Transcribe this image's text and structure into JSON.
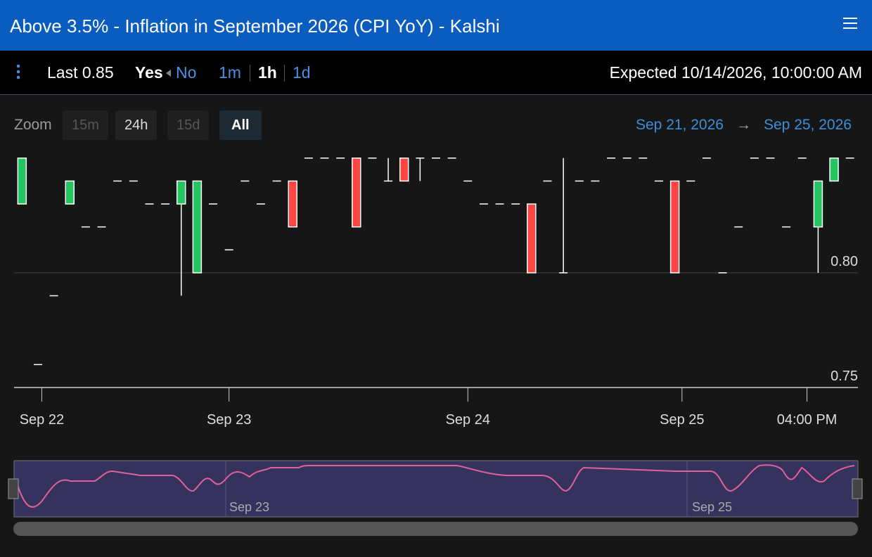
{
  "header": {
    "title": "Above 3.5% - Inflation in September 2026 (CPI YoY) - Kalshi"
  },
  "toolbar": {
    "last": "Last 0.85",
    "yes": "Yes",
    "no": "No",
    "intervals": [
      "1m",
      "1h",
      "1d"
    ],
    "expected": "Expected 10/14/2026, 10:00:00 AM"
  },
  "zoom": {
    "label": "Zoom",
    "buttons": [
      "15m",
      "24h",
      "15d",
      "All"
    ],
    "range_from": "Sep 21, 2026",
    "range_arrow": "→",
    "range_to": "Sep 25, 2026"
  },
  "chart_data": {
    "type": "candlestick",
    "x": [
      0,
      1,
      2,
      3,
      4,
      5,
      6,
      7,
      8,
      9,
      10,
      11,
      12,
      13,
      14,
      15,
      16,
      17,
      18,
      19,
      20,
      21,
      22,
      23,
      24,
      25,
      26,
      27,
      28,
      29,
      30,
      31,
      32,
      33,
      34,
      35,
      36,
      37,
      38,
      39,
      40,
      41,
      42,
      43,
      44,
      45,
      46,
      47,
      48,
      49,
      50,
      51,
      52
    ],
    "open": [
      0.83,
      0.76,
      0.79,
      0.83,
      0.82,
      0.82,
      0.84,
      0.84,
      0.83,
      0.83,
      0.83,
      0.8,
      0.83,
      0.81,
      0.84,
      0.83,
      0.84,
      0.84,
      0.85,
      0.85,
      0.85,
      0.85,
      0.85,
      0.84,
      0.85,
      0.85,
      0.85,
      0.85,
      0.84,
      0.83,
      0.83,
      0.83,
      0.83,
      0.84,
      0.8,
      0.84,
      0.84,
      0.85,
      0.85,
      0.85,
      0.84,
      0.84,
      0.84,
      0.85,
      0.8,
      0.82,
      0.85,
      0.85,
      0.82,
      0.85,
      0.82,
      0.84,
      0.85
    ],
    "high": [
      0.85,
      0.76,
      0.79,
      0.84,
      0.82,
      0.82,
      0.84,
      0.84,
      0.83,
      0.83,
      0.84,
      0.84,
      0.83,
      0.81,
      0.84,
      0.83,
      0.84,
      0.84,
      0.85,
      0.85,
      0.85,
      0.85,
      0.85,
      0.85,
      0.85,
      0.85,
      0.85,
      0.85,
      0.84,
      0.83,
      0.83,
      0.83,
      0.83,
      0.84,
      0.85,
      0.84,
      0.84,
      0.85,
      0.85,
      0.85,
      0.84,
      0.84,
      0.84,
      0.85,
      0.8,
      0.82,
      0.85,
      0.85,
      0.82,
      0.85,
      0.84,
      0.85,
      0.85
    ],
    "low": [
      0.83,
      0.76,
      0.79,
      0.83,
      0.82,
      0.82,
      0.84,
      0.84,
      0.83,
      0.83,
      0.79,
      0.8,
      0.83,
      0.81,
      0.84,
      0.83,
      0.84,
      0.82,
      0.85,
      0.85,
      0.85,
      0.82,
      0.85,
      0.84,
      0.84,
      0.84,
      0.85,
      0.85,
      0.84,
      0.83,
      0.83,
      0.83,
      0.8,
      0.84,
      0.8,
      0.84,
      0.84,
      0.85,
      0.85,
      0.85,
      0.84,
      0.8,
      0.84,
      0.85,
      0.8,
      0.82,
      0.85,
      0.85,
      0.82,
      0.85,
      0.8,
      0.84,
      0.85
    ],
    "close": [
      0.85,
      0.76,
      0.79,
      0.84,
      0.82,
      0.82,
      0.84,
      0.84,
      0.83,
      0.83,
      0.84,
      0.84,
      0.83,
      0.81,
      0.84,
      0.83,
      0.84,
      0.82,
      0.85,
      0.85,
      0.85,
      0.82,
      0.85,
      0.84,
      0.84,
      0.85,
      0.85,
      0.85,
      0.84,
      0.83,
      0.83,
      0.83,
      0.8,
      0.84,
      0.8,
      0.84,
      0.84,
      0.85,
      0.85,
      0.85,
      0.84,
      0.8,
      0.84,
      0.85,
      0.8,
      0.82,
      0.85,
      0.85,
      0.82,
      0.85,
      0.84,
      0.85,
      0.85
    ],
    "up_color": "#22c55e",
    "down_color": "#ff4444",
    "xlim": [
      -0.5,
      52.5
    ],
    "xticks": [
      {
        "value": 1.24,
        "label": "Sep 22"
      },
      {
        "value": 13,
        "label": "Sep 23"
      },
      {
        "value": 28,
        "label": "Sep 24"
      },
      {
        "value": 41.45,
        "label": "Sep 25"
      },
      {
        "value": 49.3,
        "label": "04:00 PM"
      }
    ],
    "ylim": [
      0.75,
      0.853
    ],
    "yticks": [
      {
        "value": 0.75,
        "label": "0.75"
      },
      {
        "value": 0.8,
        "label": "0.80"
      }
    ],
    "grid": true
  },
  "navigator": {
    "labels": [
      "Sep 23",
      "Sep 25"
    ]
  }
}
